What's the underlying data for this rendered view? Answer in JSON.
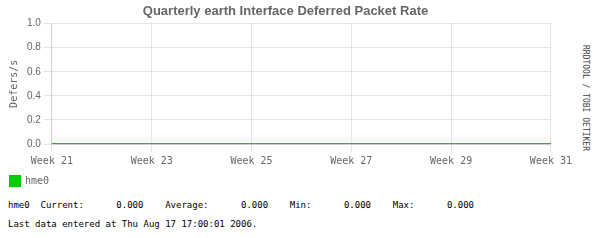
{
  "chart_data": {
    "type": "line",
    "title": "Quarterly earth Interface Deferred Packet Rate",
    "ylabel": "Defers/s",
    "categories": [
      "Week 21",
      "Week 23",
      "Week 25",
      "Week 27",
      "Week 29",
      "Week 31"
    ],
    "series": [
      {
        "name": "hme0",
        "color": "#00cc00",
        "values": [
          0.0,
          0.0,
          0.0,
          0.0,
          0.0,
          0.0
        ]
      }
    ],
    "ylim": [
      0.0,
      1.0
    ],
    "yticks": [
      {
        "value": 0.0,
        "label": "0.0"
      },
      0.2,
      0.4,
      0.6,
      0.8,
      {
        "value": 1.0,
        "label": "1.0"
      }
    ],
    "grid": true,
    "legend": "bottom",
    "annotations": [
      "hme0  Current:      0.000    Average:      0.000    Min:      0.000    Max:      0.000",
      "Last data entered at Thu Aug 17 17:00:01 2006.",
      "RRDTOOL / TOBI OETIKER"
    ]
  }
}
